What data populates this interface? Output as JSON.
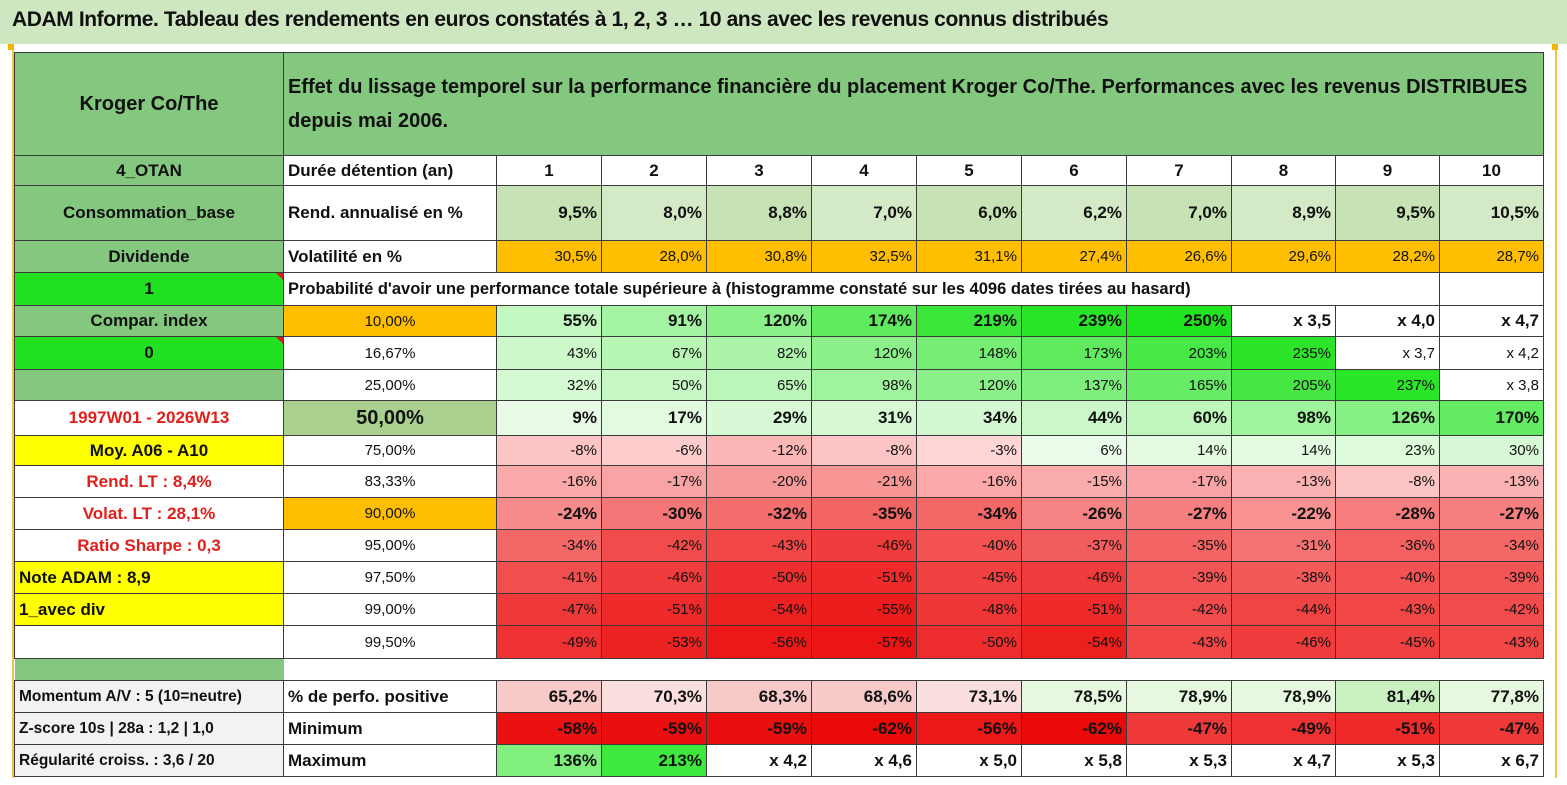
{
  "title": "ADAM Informe. Tableau des rendements en euros constatés à 1, 2, 3 … 10 ans avec les revenus connus distribués",
  "colors": {
    "green_header": "#84c77f",
    "bright_green": "#22e022",
    "yellow": "#ffff00",
    "orange": "#ffbf00",
    "red_text": "#e0201b"
  },
  "header": {
    "left": "Kroger Co/The",
    "main": "Effet du lissage temporel sur la performance financière du placement Kroger Co/The. Performances avec les revenus DISTRIBUES depuis mai 2006."
  },
  "side_panel": [
    "4_OTAN",
    "Consommation_base",
    "Dividende",
    "1",
    "Compar. index",
    "0",
    "",
    "1997W01 - 2026W13",
    "Moy. A06 - A10",
    "Rend. LT :   8,4%",
    "Volat. LT :   28,1%",
    "Ratio Sharpe :    0,3",
    "Note ADAM : 8,9",
    "1_avec div",
    ""
  ],
  "duration_row": {
    "label": "Durée détention (an)",
    "years": [
      "1",
      "2",
      "3",
      "4",
      "5",
      "6",
      "7",
      "8",
      "9",
      "10"
    ]
  },
  "return_row": {
    "label": "Rend. annualisé en %",
    "values": [
      "9,5%",
      "8,0%",
      "8,8%",
      "7,0%",
      "6,0%",
      "6,2%",
      "7,0%",
      "8,9%",
      "9,5%",
      "10,5%"
    ]
  },
  "volatility_row": {
    "label": "Volatilité en %",
    "values": [
      "30,5%",
      "28,0%",
      "30,8%",
      "32,5%",
      "31,1%",
      "27,4%",
      "26,6%",
      "29,6%",
      "28,2%",
      "28,7%"
    ]
  },
  "probability_caption": "Probabilité d'avoir une performance totale supérieure à (histogramme constaté sur les 4096 dates tirées au hasard)",
  "prob_rows": [
    {
      "p": "10,00%",
      "values": [
        "55%",
        "91%",
        "120%",
        "174%",
        "219%",
        "239%",
        "250%",
        "x 3,5",
        "x 4,0",
        "x 4,7"
      ]
    },
    {
      "p": "16,67%",
      "values": [
        "43%",
        "67%",
        "82%",
        "120%",
        "148%",
        "173%",
        "203%",
        "235%",
        "x 3,7",
        "x 4,2"
      ]
    },
    {
      "p": "25,00%",
      "values": [
        "32%",
        "50%",
        "65%",
        "98%",
        "120%",
        "137%",
        "165%",
        "205%",
        "237%",
        "x 3,8"
      ]
    },
    {
      "p": "50,00%",
      "values": [
        "9%",
        "17%",
        "29%",
        "31%",
        "34%",
        "44%",
        "60%",
        "98%",
        "126%",
        "170%"
      ]
    },
    {
      "p": "75,00%",
      "values": [
        "-8%",
        "-6%",
        "-12%",
        "-8%",
        "-3%",
        "6%",
        "14%",
        "14%",
        "23%",
        "30%"
      ]
    },
    {
      "p": "83,33%",
      "values": [
        "-16%",
        "-17%",
        "-20%",
        "-21%",
        "-16%",
        "-15%",
        "-17%",
        "-13%",
        "-8%",
        "-13%"
      ]
    },
    {
      "p": "90,00%",
      "values": [
        "-24%",
        "-30%",
        "-32%",
        "-35%",
        "-34%",
        "-26%",
        "-27%",
        "-22%",
        "-28%",
        "-27%"
      ]
    },
    {
      "p": "95,00%",
      "values": [
        "-34%",
        "-42%",
        "-43%",
        "-46%",
        "-40%",
        "-37%",
        "-35%",
        "-31%",
        "-36%",
        "-34%"
      ]
    },
    {
      "p": "97,50%",
      "values": [
        "-41%",
        "-46%",
        "-50%",
        "-51%",
        "-45%",
        "-46%",
        "-39%",
        "-38%",
        "-40%",
        "-39%"
      ]
    },
    {
      "p": "99,00%",
      "values": [
        "-47%",
        "-51%",
        "-54%",
        "-55%",
        "-48%",
        "-51%",
        "-42%",
        "-44%",
        "-43%",
        "-42%"
      ]
    },
    {
      "p": "99,50%",
      "values": [
        "-49%",
        "-53%",
        "-56%",
        "-57%",
        "-50%",
        "-54%",
        "-43%",
        "-46%",
        "-45%",
        "-43%"
      ]
    }
  ],
  "stats_rows": [
    {
      "side": "Momentum A/V : 5 (10=neutre)",
      "label": "% de perfo. positive",
      "values": [
        "65,2%",
        "70,3%",
        "68,3%",
        "68,6%",
        "73,1%",
        "78,5%",
        "78,9%",
        "78,9%",
        "81,4%",
        "77,8%"
      ]
    },
    {
      "side": "Z-score 10s | 28a : 1,2 | 1,0",
      "label": "Minimum",
      "values": [
        "-58%",
        "-59%",
        "-59%",
        "-62%",
        "-56%",
        "-62%",
        "-47%",
        "-49%",
        "-51%",
        "-47%"
      ]
    },
    {
      "side": "Régularité croiss. : 3,6 / 20",
      "label": "Maximum",
      "values": [
        "136%",
        "213%",
        "x 4,2",
        "x 4,6",
        "x 5,0",
        "x 5,8",
        "x 5,3",
        "x 4,7",
        "x 5,3",
        "x 6,7"
      ]
    }
  ]
}
